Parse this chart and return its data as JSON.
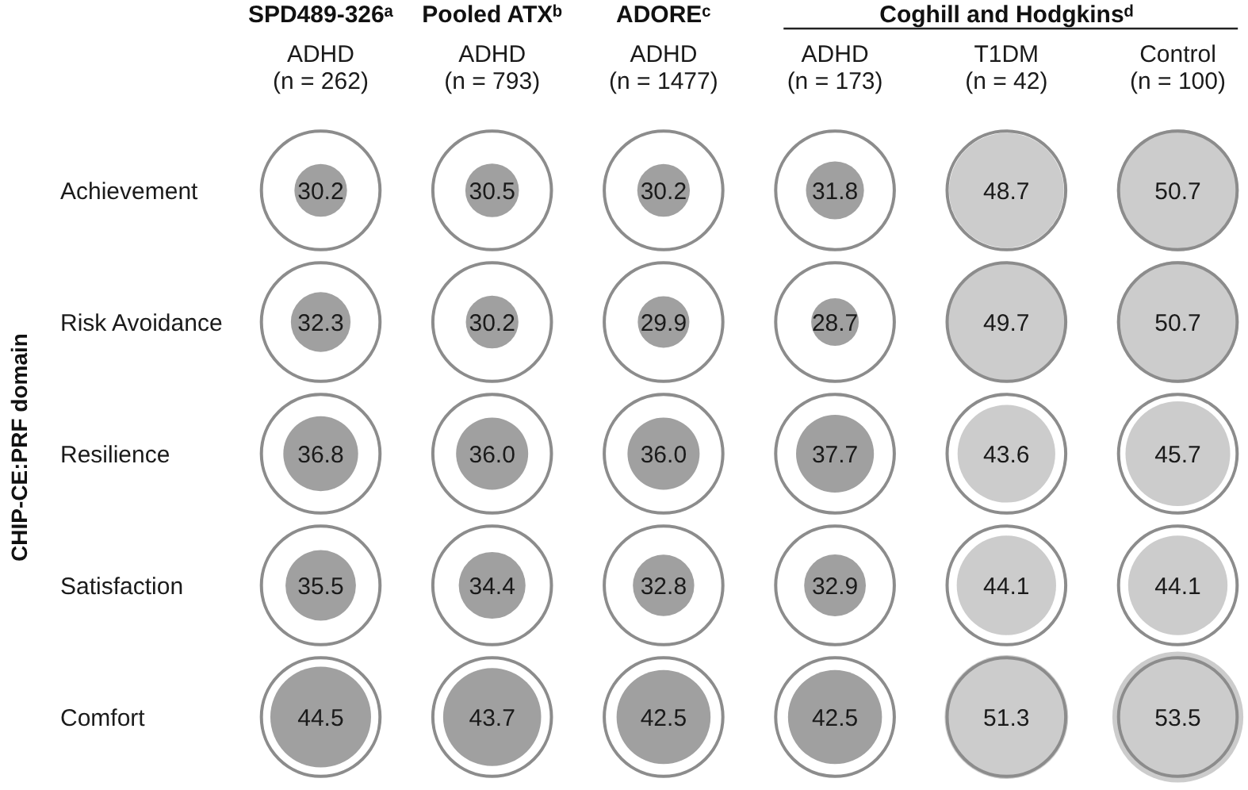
{
  "chart_data": {
    "type": "heatmap",
    "ylabel": "CHIP-CE:PRF domain",
    "categories": [
      "ADHD\n(n = 262)",
      "ADHD\n(n = 793)",
      "ADHD\n(n = 1477)",
      "ADHD\n(n = 173)",
      "T1DM\n(n = 42)",
      "Control\n(n = 100)"
    ],
    "y_categories": [
      "Achievement",
      "Risk Avoidance",
      "Resilience",
      "Satisfaction",
      "Comfort"
    ],
    "cells": [
      [
        30.2,
        30.5,
        30.2,
        31.8,
        48.7,
        50.7
      ],
      [
        32.3,
        30.2,
        29.9,
        28.7,
        49.7,
        50.7
      ],
      [
        36.8,
        36.0,
        36.0,
        37.7,
        43.6,
        45.7
      ],
      [
        35.5,
        34.4,
        32.8,
        32.9,
        44.1,
        44.1
      ],
      [
        44.5,
        43.7,
        42.5,
        42.5,
        51.3,
        53.5
      ]
    ],
    "cell_labels": [
      [
        "30.2",
        "30.5",
        "30.2",
        "31.8",
        "48.7",
        "50.7"
      ],
      [
        "32.3",
        "30.2",
        "29.9",
        "28.7",
        "49.7",
        "50.7"
      ],
      [
        "36.8",
        "36.0",
        "36.0",
        "37.7",
        "43.6",
        "45.7"
      ],
      [
        "35.5",
        "34.4",
        "32.8",
        "32.9",
        "44.1",
        "44.1"
      ],
      [
        "44.5",
        "43.7",
        "42.5",
        "42.5",
        "51.3",
        "53.5"
      ]
    ],
    "colors": [
      "#a0a0a0",
      "#a0a0a0",
      "#a0a0a0",
      "#a0a0a0",
      "#cccccc",
      "#cccccc",
      "#a0a0a0",
      "#a0a0a0",
      "#a0a0a0",
      "#a0a0a0",
      "#cccccc",
      "#cccccc",
      "#a0a0a0",
      "#a0a0a0",
      "#a0a0a0",
      "#a0a0a0",
      "#cccccc",
      "#cccccc",
      "#a0a0a0",
      "#a0a0a0",
      "#a0a0a0",
      "#a0a0a0",
      "#cccccc",
      "#cccccc",
      "#a0a0a0",
      "#a0a0a0",
      "#a0a0a0",
      "#a0a0a0",
      "#cccccc",
      "#cccccc"
    ],
    "data_labels": true,
    "annotations": [
      "SPD489-326ᵃ",
      "Pooled ATXᵇ",
      "ADOREᶜ",
      "Coghill and Hodgkinsᵈ"
    ]
  }
}
